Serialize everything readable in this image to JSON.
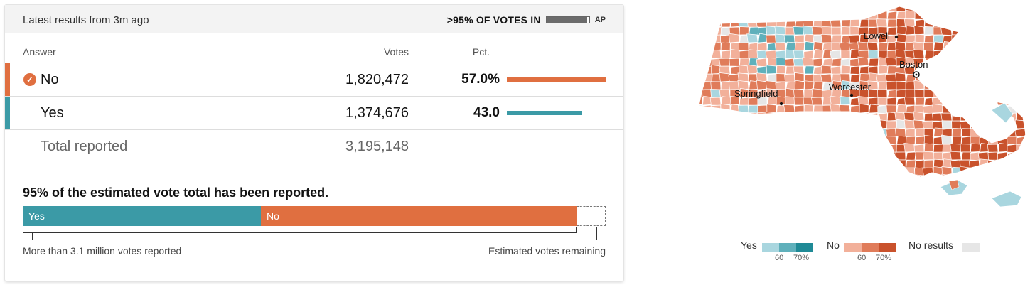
{
  "header": {
    "updated": "Latest results from 3m ago",
    "reporting_label": ">95% OF VOTES IN",
    "reporting_fraction": 0.95,
    "source": "AP"
  },
  "table": {
    "columns": {
      "answer": "Answer",
      "votes": "Votes",
      "pct": "Pct."
    },
    "rows": [
      {
        "answer": "No",
        "votes": "1,820,472",
        "pct": "57.0%",
        "pct_value": 57.0,
        "color": "#e06f40",
        "winner": true
      },
      {
        "answer": "Yes",
        "votes": "1,374,676",
        "pct": "43.0",
        "pct_value": 43.0,
        "color": "#3b9aa6",
        "winner": false
      }
    ],
    "total": {
      "label": "Total reported",
      "votes": "3,195,148"
    }
  },
  "estimate": {
    "title": "95% of the estimated vote total has been reported.",
    "yes_label": "Yes",
    "no_label": "No",
    "yes_share": 0.409,
    "no_share": 0.541,
    "remaining_share": 0.05,
    "left_caption": "More than 3.1 million votes reported",
    "right_caption": "Estimated votes remaining"
  },
  "map": {
    "cities": [
      "Lowell",
      "Boston",
      "Springfield",
      "Worcester"
    ]
  },
  "legend": {
    "yes": "Yes",
    "no": "No",
    "none": "No results",
    "tick_60": "60",
    "tick_70": "70%",
    "yes_colors": [
      "#a9d6df",
      "#5fb0bb",
      "#1f8a96"
    ],
    "no_colors": [
      "#f2b09a",
      "#e07c5a",
      "#c9522c"
    ],
    "none_color": "#e6e6e6"
  }
}
